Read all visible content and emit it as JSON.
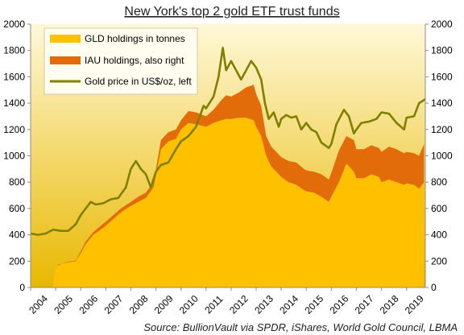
{
  "chart_data": {
    "type": "area",
    "title": "New York's top 2 gold ETF trust funds",
    "source": "Source: BullionVault via SPDR, iShares, World Gold Council, LBMA",
    "x_tick_labels": [
      "2004",
      "2005",
      "2006",
      "2007",
      "2008",
      "2009",
      "2010",
      "2011",
      "2012",
      "2013",
      "2014",
      "2015",
      "2016",
      "2017",
      "2018",
      "2019"
    ],
    "y_tick_labels": [
      "0",
      "200",
      "400",
      "600",
      "800",
      "1000",
      "1200",
      "1400",
      "1600",
      "1800",
      "2000"
    ],
    "ylim": [
      0,
      2000
    ],
    "xlim": [
      2004.0,
      2019.75
    ],
    "legend_position": "top-left",
    "grid": false,
    "colors": {
      "background_top": "#fff8d8",
      "background_bottom": "#e8b800",
      "gld": "#ffc000",
      "iau": "#e36c0a",
      "gold_price": "#7f7f00"
    },
    "series": [
      {
        "name": "GLD holdings in tonnes",
        "kind": "area",
        "x": [
          2004.9,
          2004.95,
          2005.0,
          2005.2,
          2005.5,
          2005.8,
          2006.0,
          2006.2,
          2006.5,
          2006.8,
          2007.0,
          2007.3,
          2007.6,
          2008.0,
          2008.3,
          2008.6,
          2008.9,
          2009.0,
          2009.2,
          2009.5,
          2009.8,
          2010.0,
          2010.3,
          2010.6,
          2011.0,
          2011.3,
          2011.6,
          2011.8,
          2012.0,
          2012.3,
          2012.6,
          2012.9,
          2013.0,
          2013.2,
          2013.4,
          2013.6,
          2013.8,
          2014.0,
          2014.3,
          2014.6,
          2014.9,
          2015.0,
          2015.3,
          2015.6,
          2015.9,
          2016.0,
          2016.3,
          2016.6,
          2016.9,
          2017.0,
          2017.3,
          2017.6,
          2017.9,
          2018.0,
          2018.3,
          2018.6,
          2018.9,
          2019.0,
          2019.3,
          2019.5,
          2019.7
        ],
        "values": [
          0,
          100,
          150,
          180,
          190,
          200,
          260,
          330,
          400,
          440,
          470,
          520,
          570,
          620,
          650,
          680,
          760,
          850,
          1050,
          1110,
          1130,
          1200,
          1250,
          1240,
          1220,
          1250,
          1270,
          1280,
          1280,
          1290,
          1290,
          1270,
          1220,
          1150,
          1000,
          920,
          880,
          840,
          800,
          780,
          740,
          730,
          720,
          690,
          650,
          690,
          800,
          940,
          880,
          830,
          830,
          860,
          840,
          800,
          820,
          800,
          780,
          790,
          780,
          750,
          800
        ]
      },
      {
        "name": "IAU holdings, also right",
        "kind": "area",
        "x": [
          2005.1,
          2005.2,
          2005.5,
          2005.8,
          2006.0,
          2006.2,
          2006.5,
          2006.8,
          2007.0,
          2007.3,
          2007.6,
          2008.0,
          2008.3,
          2008.6,
          2008.9,
          2009.0,
          2009.2,
          2009.5,
          2009.8,
          2010.0,
          2010.3,
          2010.6,
          2011.0,
          2011.3,
          2011.6,
          2011.8,
          2012.0,
          2012.3,
          2012.6,
          2012.9,
          2013.0,
          2013.2,
          2013.4,
          2013.6,
          2013.8,
          2014.0,
          2014.3,
          2014.6,
          2014.9,
          2015.0,
          2015.3,
          2015.6,
          2015.9,
          2016.0,
          2016.3,
          2016.6,
          2016.9,
          2017.0,
          2017.3,
          2017.6,
          2017.9,
          2018.0,
          2018.3,
          2018.6,
          2018.9,
          2019.0,
          2019.3,
          2019.5,
          2019.7
        ],
        "values": [
          175,
          180,
          195,
          205,
          275,
          350,
          420,
          470,
          500,
          550,
          600,
          650,
          690,
          720,
          800,
          900,
          1120,
          1180,
          1200,
          1270,
          1340,
          1330,
          1300,
          1350,
          1420,
          1460,
          1450,
          1480,
          1520,
          1540,
          1470,
          1380,
          1150,
          1070,
          1030,
          990,
          960,
          950,
          900,
          890,
          880,
          860,
          820,
          870,
          1040,
          1150,
          1120,
          1050,
          1050,
          1080,
          1060,
          1030,
          1070,
          1050,
          1020,
          1030,
          1020,
          1000,
          1090
        ]
      },
      {
        "name": "Gold price in US$/oz, left",
        "kind": "line",
        "x": [
          2004.0,
          2004.3,
          2004.6,
          2004.9,
          2005.2,
          2005.5,
          2005.8,
          2006.0,
          2006.2,
          2006.4,
          2006.6,
          2006.9,
          2007.2,
          2007.5,
          2007.8,
          2008.0,
          2008.2,
          2008.4,
          2008.6,
          2008.8,
          2009.0,
          2009.2,
          2009.5,
          2009.8,
          2010.0,
          2010.3,
          2010.6,
          2010.9,
          2011.0,
          2011.3,
          2011.5,
          2011.67,
          2011.8,
          2012.0,
          2012.2,
          2012.4,
          2012.6,
          2012.8,
          2013.0,
          2013.2,
          2013.35,
          2013.5,
          2013.7,
          2013.9,
          2014.0,
          2014.2,
          2014.4,
          2014.6,
          2014.8,
          2015.0,
          2015.2,
          2015.4,
          2015.6,
          2015.9,
          2016.0,
          2016.2,
          2016.5,
          2016.7,
          2016.9,
          2017.0,
          2017.2,
          2017.5,
          2017.8,
          2018.0,
          2018.3,
          2018.6,
          2018.9,
          2019.0,
          2019.3,
          2019.5,
          2019.75
        ],
        "values": [
          410,
          400,
          410,
          440,
          430,
          430,
          480,
          550,
          600,
          650,
          630,
          640,
          670,
          680,
          760,
          900,
          960,
          900,
          860,
          760,
          880,
          930,
          950,
          1050,
          1110,
          1150,
          1220,
          1380,
          1360,
          1450,
          1600,
          1820,
          1650,
          1720,
          1650,
          1580,
          1650,
          1720,
          1670,
          1580,
          1400,
          1280,
          1330,
          1220,
          1280,
          1310,
          1290,
          1300,
          1200,
          1250,
          1200,
          1180,
          1100,
          1060,
          1090,
          1240,
          1350,
          1300,
          1170,
          1200,
          1250,
          1260,
          1280,
          1330,
          1320,
          1250,
          1200,
          1290,
          1300,
          1400,
          1430
        ]
      }
    ]
  }
}
